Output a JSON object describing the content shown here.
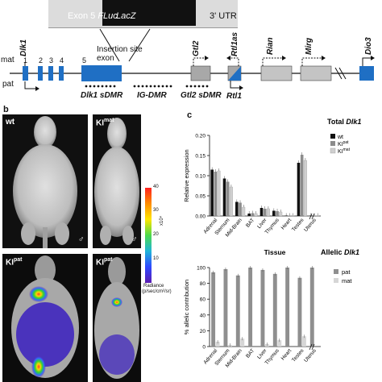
{
  "panel_a": {
    "construct": {
      "exon5": "Exon 5",
      "fluc": "FLuc",
      "lacz": "LacZ",
      "utr": "3' UTR"
    },
    "insertion": {
      "line1": "Insertion site",
      "line2": "exon"
    },
    "strands": {
      "mat": "mat",
      "pat": "pat"
    },
    "genes": [
      "Dlk1",
      "Gtl2",
      "Rtl1as",
      "Rian",
      "Mirg",
      "Dio3"
    ],
    "rtl1": "Rtl1",
    "exon_numbers": [
      "1",
      "2",
      "3",
      "4",
      "5"
    ],
    "dmrs": [
      "Dlk1 sDMR",
      "IG-DMR",
      "Gtl2 sDMR"
    ]
  },
  "panel_b": {
    "letter": "b",
    "photos": [
      {
        "label": "wt",
        "sup": ""
      },
      {
        "label": "KI",
        "sup": "mat"
      },
      {
        "label": "KI",
        "sup": "pat"
      },
      {
        "label": "KI",
        "sup": "pat"
      }
    ],
    "male_symbol": "♂",
    "scale": {
      "ticks": [
        "40",
        "30",
        "20",
        "10"
      ],
      "exponent": "x10⁴",
      "label1": "Radiance",
      "label2": "(p/sec/cm²/sr)"
    }
  },
  "panel_c": {
    "letter": "c",
    "colors": {
      "wt": "#111111",
      "kipat": "#8c8c8c",
      "kimat": "#cfcfcf"
    },
    "chart_data": [
      {
        "type": "bar",
        "title": "Total Dlk1",
        "ylabel": "Relative expression",
        "xlabel": "Tissue",
        "ylim": [
          0,
          0.2
        ],
        "yticks": [
          "0.00",
          "0.05",
          "0.10",
          "0.15",
          "0.20"
        ],
        "categories": [
          "Adrenal",
          "Sternum",
          "Mid-Brain",
          "BAT",
          "Liver",
          "Thymus",
          "Heart",
          "Testes",
          "Uterus"
        ],
        "series": [
          {
            "name": "wt",
            "values": [
              0.115,
              0.093,
              0.035,
              0.006,
              0.02,
              0.013,
              0.001,
              0.132,
              0.001
            ]
          },
          {
            "name": "KIpat",
            "values": [
              0.11,
              0.085,
              0.033,
              0.007,
              0.018,
              0.012,
              0.001,
              0.152,
              0.001
            ]
          },
          {
            "name": "KImat",
            "values": [
              0.112,
              0.072,
              0.022,
              0.006,
              0.018,
              0.01,
              0.001,
              0.138,
              0.001
            ]
          }
        ],
        "legend": [
          {
            "name": "wt",
            "sup": ""
          },
          {
            "name": "KI",
            "sup": "pat"
          },
          {
            "name": "KI",
            "sup": "mat"
          }
        ]
      },
      {
        "type": "bar",
        "title": "Allelic Dlk1",
        "ylabel": "% allelic contribution",
        "ylim": [
          0,
          100
        ],
        "yticks": [
          "0",
          "20",
          "40",
          "60",
          "80",
          "100"
        ],
        "categories": [
          "Adrenal",
          "Sternum",
          "Mid-Brain",
          "BAT",
          "Liver",
          "Thymus",
          "Heart",
          "Testes",
          "Uterus"
        ],
        "series": [
          {
            "name": "pat",
            "values": [
              94,
              98,
              90,
              100,
              97,
              92,
              100,
              87,
              100
            ]
          },
          {
            "name": "mat",
            "values": [
              6,
              2,
              10,
              0,
              3,
              8,
              0,
              13,
              0
            ]
          }
        ]
      }
    ]
  }
}
